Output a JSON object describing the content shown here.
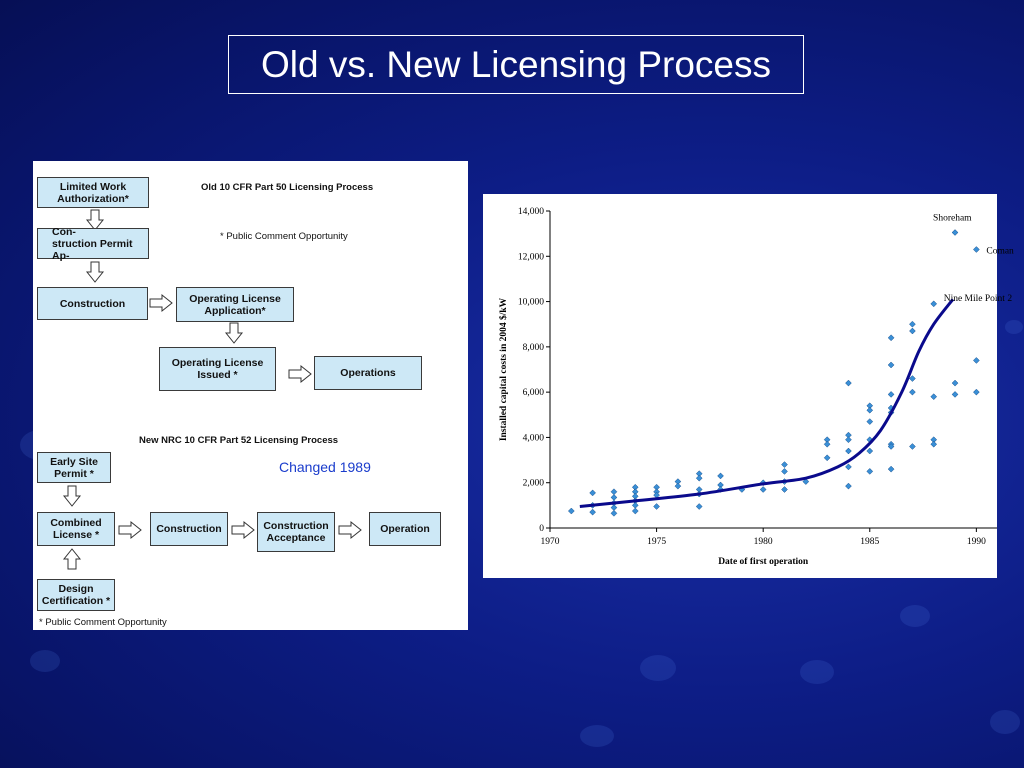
{
  "slide": {
    "title": "Old vs. New Licensing Process",
    "background_color": "#0d1d86"
  },
  "flowchart": {
    "old_title": "Old 10 CFR Part 50 Licensing Process",
    "old_note": "* Public Comment Opportunity",
    "old_boxes": {
      "lwa": "Limited Work\nAuthorization*",
      "cp": "Con-\nstruction Permit Ap-",
      "construction": "Construction",
      "ola": "Operating License\nApplication*",
      "oli": "Operating License\nIssued *",
      "operations": "Operations"
    },
    "new_title": "New NRC 10 CFR Part 52 Licensing Process",
    "changed_note": "Changed 1989",
    "new_boxes": {
      "esp": "Early Site\nPermit *",
      "col": "Combined\nLicense *",
      "construction": "Construction",
      "acceptance": "Construction\nAcceptance",
      "operation": "Operation",
      "dc": "Design\nCertification *"
    },
    "bottom_note": "* Public Comment Opportunity",
    "box_fill": "#cde8f6"
  },
  "chart_data": {
    "type": "scatter",
    "xlabel": "Date of first operation",
    "ylabel": "Installed capital costs in 2004 $/kW",
    "xlim": [
      1970,
      1992
    ],
    "ylim": [
      0,
      14000
    ],
    "x_ticks": [
      "1970",
      "1975",
      "1980",
      "1985",
      "1990"
    ],
    "y_ticks": [
      "0",
      "2,000",
      "4,000",
      "6,000",
      "8,000",
      "10,000",
      "12,000",
      "14,000"
    ],
    "point_color": "#3a8fd6",
    "trend_color": "#0a0a8c",
    "annotations": [
      {
        "label": "Shoreham",
        "x": 1989.0,
        "y": 13050
      },
      {
        "label": "Coman",
        "x": 1990.0,
        "y": 12300
      },
      {
        "label": "Nine Mile Point 2",
        "x": 1988.0,
        "y": 9850
      }
    ],
    "series": [
      {
        "points": [
          [
            1971,
            750
          ],
          [
            1972,
            1550
          ],
          [
            1972,
            700
          ],
          [
            1972,
            1000
          ],
          [
            1973,
            1600
          ],
          [
            1973,
            1350
          ],
          [
            1973,
            1100
          ],
          [
            1973,
            900
          ],
          [
            1973,
            650
          ],
          [
            1974,
            1800
          ],
          [
            1974,
            1600
          ],
          [
            1974,
            1400
          ],
          [
            1974,
            1200
          ],
          [
            1974,
            1000
          ],
          [
            1974,
            750
          ],
          [
            1975,
            1800
          ],
          [
            1975,
            1600
          ],
          [
            1975,
            1450
          ],
          [
            1975,
            950
          ],
          [
            1976,
            2050
          ],
          [
            1976,
            1850
          ],
          [
            1977,
            2400
          ],
          [
            1977,
            2200
          ],
          [
            1977,
            1700
          ],
          [
            1977,
            1500
          ],
          [
            1977,
            950
          ],
          [
            1978,
            2300
          ],
          [
            1978,
            1900
          ],
          [
            1978,
            1700
          ],
          [
            1979,
            1700
          ],
          [
            1980,
            2000
          ],
          [
            1980,
            1700
          ],
          [
            1981,
            2800
          ],
          [
            1981,
            2500
          ],
          [
            1981,
            2050
          ],
          [
            1981,
            1700
          ],
          [
            1982,
            2050
          ],
          [
            1983,
            3900
          ],
          [
            1983,
            3700
          ],
          [
            1983,
            3100
          ],
          [
            1984,
            6400
          ],
          [
            1984,
            4100
          ],
          [
            1984,
            3900
          ],
          [
            1984,
            3400
          ],
          [
            1984,
            2700
          ],
          [
            1984,
            1850
          ],
          [
            1985,
            5400
          ],
          [
            1985,
            5200
          ],
          [
            1985,
            4700
          ],
          [
            1985,
            3900
          ],
          [
            1985,
            3400
          ],
          [
            1985,
            2500
          ],
          [
            1986,
            8400
          ],
          [
            1986,
            7200
          ],
          [
            1986,
            5900
          ],
          [
            1986,
            5300
          ],
          [
            1986,
            5100
          ],
          [
            1986,
            3700
          ],
          [
            1986,
            3600
          ],
          [
            1986,
            2600
          ],
          [
            1987,
            9000
          ],
          [
            1987,
            8700
          ],
          [
            1987,
            6600
          ],
          [
            1987,
            6000
          ],
          [
            1987,
            3600
          ],
          [
            1988,
            9900
          ],
          [
            1988,
            5800
          ],
          [
            1988,
            3900
          ],
          [
            1988,
            3700
          ],
          [
            1989,
            13050
          ],
          [
            1989,
            6400
          ],
          [
            1989,
            5900
          ],
          [
            1990,
            12300
          ],
          [
            1990,
            7400
          ],
          [
            1990,
            6000
          ]
        ]
      }
    ],
    "trend": [
      [
        1971.4,
        950
      ],
      [
        1974,
        1200
      ],
      [
        1977,
        1500
      ],
      [
        1980,
        1950
      ],
      [
        1982,
        2200
      ],
      [
        1983.5,
        2700
      ],
      [
        1984.5,
        3300
      ],
      [
        1985.5,
        4300
      ],
      [
        1986.5,
        6000
      ],
      [
        1987.3,
        7800
      ],
      [
        1988,
        9000
      ],
      [
        1988.9,
        10100
      ]
    ]
  }
}
